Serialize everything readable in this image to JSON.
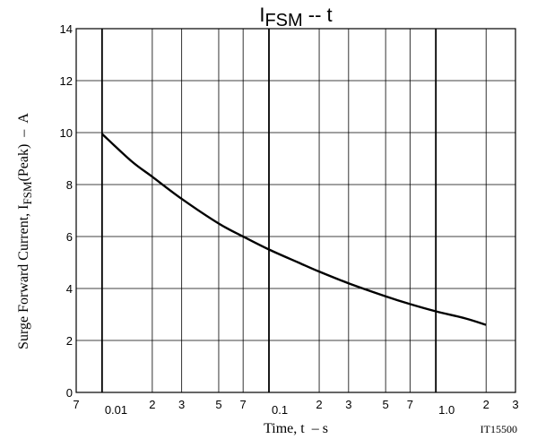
{
  "chart_data": {
    "type": "line",
    "title": {
      "main": "I",
      "sub": "FSM",
      "rest": " -- t"
    },
    "xlabel": "Time, t  – s",
    "ylabel": {
      "pre": "Surge Forward Current, I",
      "sub": "FSM",
      "post": "(Peak)  –  A"
    },
    "figure_id": "IT15500",
    "x_scale": "log",
    "xlim": [
      0.007,
      3
    ],
    "ylim": [
      0,
      14
    ],
    "y_ticks": [
      0,
      2,
      4,
      6,
      8,
      10,
      12,
      14
    ],
    "x_ticks": [
      {
        "value": 0.007,
        "label": "7",
        "major": false
      },
      {
        "value": 0.01,
        "label": "0.01",
        "major": true
      },
      {
        "value": 0.02,
        "label": "2",
        "major": false
      },
      {
        "value": 0.03,
        "label": "3",
        "major": false
      },
      {
        "value": 0.05,
        "label": "5",
        "major": false
      },
      {
        "value": 0.07,
        "label": "7",
        "major": false
      },
      {
        "value": 0.1,
        "label": "0.1",
        "major": true
      },
      {
        "value": 0.2,
        "label": "2",
        "major": false
      },
      {
        "value": 0.3,
        "label": "3",
        "major": false
      },
      {
        "value": 0.5,
        "label": "5",
        "major": false
      },
      {
        "value": 0.7,
        "label": "7",
        "major": false
      },
      {
        "value": 1.0,
        "label": "1.0",
        "major": true
      },
      {
        "value": 2.0,
        "label": "2",
        "major": false
      },
      {
        "value": 3.0,
        "label": "3",
        "major": false
      }
    ],
    "grid": true,
    "series": [
      {
        "x": [
          0.01,
          0.015,
          0.02,
          0.03,
          0.05,
          0.07,
          0.1,
          0.15,
          0.2,
          0.3,
          0.5,
          0.7,
          1.0,
          1.5,
          2.0
        ],
        "y": [
          9.95,
          8.9,
          8.3,
          7.45,
          6.5,
          6.0,
          5.5,
          5.0,
          4.65,
          4.2,
          3.7,
          3.4,
          3.12,
          2.85,
          2.6
        ]
      }
    ]
  }
}
